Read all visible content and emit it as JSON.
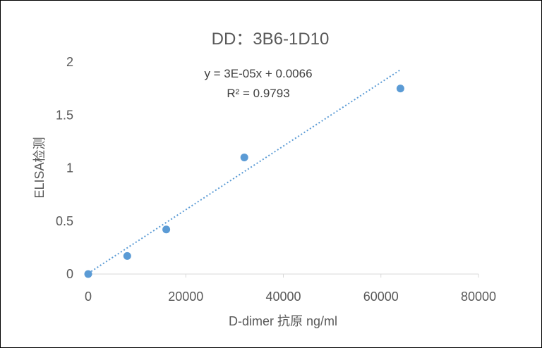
{
  "chart_data": {
    "type": "scatter",
    "title": "DD：3B6-1D10",
    "xlabel": "D-dimer 抗原 ng/ml",
    "ylabel": "ELISA检测",
    "xlim": [
      0,
      80000
    ],
    "ylim": [
      0,
      2
    ],
    "x_ticks": [
      0,
      20000,
      40000,
      60000,
      80000
    ],
    "x_tick_labels": [
      "0",
      "20000",
      "40000",
      "60000",
      "80000"
    ],
    "y_ticks": [
      0,
      0.5,
      1,
      1.5,
      2
    ],
    "y_tick_labels": [
      "0",
      "0.5",
      "1",
      "1.5",
      "2"
    ],
    "grid": false,
    "series": [
      {
        "x": [
          0,
          8000,
          16000,
          32000,
          64000
        ],
        "y": [
          0.0,
          0.17,
          0.42,
          1.1,
          1.75
        ],
        "color": "#5b9bd5",
        "marker": "circle"
      }
    ],
    "trendline": {
      "type": "linear",
      "slope": 3e-05,
      "intercept": 0.0066,
      "x_range": [
        0,
        64000
      ],
      "style": "dotted",
      "color": "#5b9bd5",
      "equation": "y = 3E-05x + 0.0066",
      "r_squared": "R² = 0.9793"
    }
  }
}
